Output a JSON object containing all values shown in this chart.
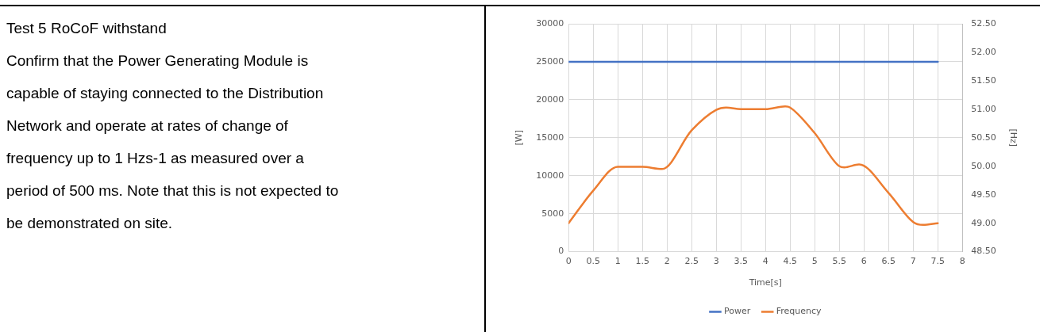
{
  "chart_data": {
    "type": "line",
    "xlabel": "Time[s]",
    "ylabel": "[W]",
    "y2label": "[Hz]",
    "xlim": [
      0,
      8
    ],
    "xticks": [
      0,
      0.5,
      1,
      1.5,
      2,
      2.5,
      3,
      3.5,
      4,
      4.5,
      5,
      5.5,
      6,
      6.5,
      7,
      7.5,
      8
    ],
    "ylim": [
      0,
      30000
    ],
    "yticks": [
      0,
      5000,
      10000,
      15000,
      20000,
      25000,
      30000
    ],
    "y2lim": [
      48.5,
      52.5
    ],
    "y2ticks": [
      {
        "value": 48.5,
        "label": "48.50"
      },
      {
        "value": 49,
        "label": "49.00"
      },
      {
        "value": 49.5,
        "label": "49.50"
      },
      {
        "value": 50,
        "label": "50.00"
      },
      {
        "value": 50.5,
        "label": "50.50"
      },
      {
        "value": 51,
        "label": "51.00"
      },
      {
        "value": 51.5,
        "label": "51.50"
      },
      {
        "value": 52,
        "label": "52.00"
      },
      {
        "value": 52.5,
        "label": "52.50"
      }
    ],
    "grid": true,
    "legend": "bottom",
    "marker": "none",
    "line_style": "solid",
    "series": [
      {
        "name": "Power",
        "color": "#4472c4",
        "x": [
          0,
          7.5
        ],
        "values": [
          25000,
          25000
        ]
      },
      {
        "name": "Frequency",
        "color": "#ed7d31",
        "axis": "y2",
        "x": [
          0,
          0.5,
          1,
          1.5,
          1.9,
          2.5,
          3,
          3.2,
          3.5,
          4,
          4.4,
          4.5,
          5,
          5.5,
          5.6,
          5.9,
          6.5,
          7,
          7.2,
          7.5
        ],
        "values": [
          49.0,
          49.57,
          49.99,
          49.99,
          49.95,
          50.63,
          50.99,
          51.03,
          51.0,
          51.0,
          51.05,
          51.03,
          50.58,
          50.0,
          49.98,
          50.03,
          49.53,
          49.02,
          48.97,
          49.0
        ]
      }
    ],
    "annotations": [
      "Test 5 RoCoF withstand",
      "Confirm that the Power Generating Module is",
      "capable of staying connected to the Distribution",
      "Network and operate at rates of change of",
      "frequency up to 1 Hzs-1 as measured over a",
      "period of 500 ms. Note that this is not expected to",
      "be demonstrated on site."
    ]
  }
}
